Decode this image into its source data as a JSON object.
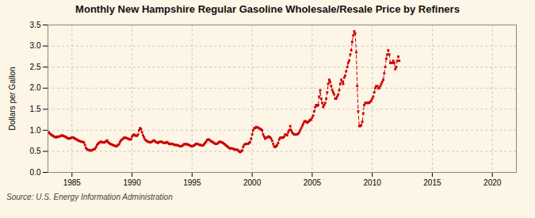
{
  "chart_data": {
    "type": "line",
    "title": "Monthly New Hampshire Regular Gasoline Wholesale/Resale Price by Refiners",
    "ylabel": "Dollars per Gallon",
    "annotations": [
      "Source: U.S. Energy Information Administration"
    ],
    "color": "#cc0000",
    "marker": "square",
    "line_style": "dashed",
    "grid": true,
    "xlim": [
      1983,
      2022
    ],
    "ylim": [
      0.0,
      3.5
    ],
    "xticks": [
      1985,
      1990,
      1995,
      2000,
      2005,
      2010,
      2015,
      2020
    ],
    "yticks": [
      {
        "value": 0.0,
        "label": "0.0"
      },
      0.5,
      {
        "value": 1.0,
        "label": "1.0"
      },
      1.5,
      {
        "value": 2.0,
        "label": "2.0"
      },
      2.5,
      {
        "value": 3.0,
        "label": "3.0"
      },
      3.5
    ],
    "x": [
      1983.08,
      1983.17,
      1983.25,
      1983.33,
      1983.42,
      1983.5,
      1983.58,
      1983.67,
      1983.75,
      1983.83,
      1983.92,
      1984.0,
      1984.08,
      1984.17,
      1984.25,
      1984.33,
      1984.42,
      1984.5,
      1984.58,
      1984.67,
      1984.75,
      1984.83,
      1984.92,
      1985.0,
      1985.08,
      1985.17,
      1985.25,
      1985.33,
      1985.42,
      1985.5,
      1985.58,
      1985.67,
      1985.75,
      1985.83,
      1985.92,
      1986.0,
      1986.08,
      1986.17,
      1986.25,
      1986.33,
      1986.42,
      1986.5,
      1986.58,
      1986.67,
      1986.75,
      1986.83,
      1986.92,
      1987.0,
      1987.08,
      1987.17,
      1987.25,
      1987.33,
      1987.42,
      1987.5,
      1987.58,
      1987.67,
      1987.75,
      1987.83,
      1987.92,
      1988.0,
      1988.08,
      1988.17,
      1988.25,
      1988.33,
      1988.42,
      1988.5,
      1988.58,
      1988.67,
      1988.75,
      1988.83,
      1988.92,
      1989.0,
      1989.08,
      1989.17,
      1989.25,
      1989.33,
      1989.42,
      1989.5,
      1989.58,
      1989.67,
      1989.75,
      1989.83,
      1989.92,
      1990.0,
      1990.08,
      1990.17,
      1990.25,
      1990.33,
      1990.42,
      1990.5,
      1990.58,
      1990.67,
      1990.75,
      1990.83,
      1990.92,
      1991.0,
      1991.08,
      1991.17,
      1991.25,
      1991.33,
      1991.42,
      1991.5,
      1991.58,
      1991.67,
      1991.75,
      1991.83,
      1991.92,
      1992.0,
      1992.08,
      1992.17,
      1992.25,
      1992.33,
      1992.42,
      1992.5,
      1992.58,
      1992.67,
      1992.75,
      1992.83,
      1992.92,
      1993.0,
      1993.08,
      1993.17,
      1993.25,
      1993.33,
      1993.42,
      1993.5,
      1993.58,
      1993.67,
      1993.75,
      1993.83,
      1993.92,
      1994.0,
      1994.08,
      1994.17,
      1994.25,
      1994.33,
      1994.42,
      1994.5,
      1994.58,
      1994.67,
      1994.75,
      1994.83,
      1994.92,
      1995.0,
      1995.08,
      1995.17,
      1995.25,
      1995.33,
      1995.42,
      1995.5,
      1995.58,
      1995.67,
      1995.75,
      1995.83,
      1995.92,
      1996.0,
      1996.08,
      1996.17,
      1996.25,
      1996.33,
      1996.42,
      1996.5,
      1996.58,
      1996.67,
      1996.75,
      1996.83,
      1996.92,
      1997.0,
      1997.08,
      1997.17,
      1997.25,
      1997.33,
      1997.42,
      1997.5,
      1997.58,
      1997.67,
      1997.75,
      1997.83,
      1997.92,
      1998.0,
      1998.08,
      1998.17,
      1998.25,
      1998.33,
      1998.42,
      1998.5,
      1998.58,
      1998.67,
      1998.75,
      1998.83,
      1998.92,
      1999.0,
      1999.08,
      1999.17,
      1999.25,
      1999.33,
      1999.42,
      1999.5,
      1999.58,
      1999.67,
      1999.75,
      1999.83,
      1999.92,
      2000.0,
      2000.08,
      2000.17,
      2000.25,
      2000.33,
      2000.42,
      2000.5,
      2000.58,
      2000.67,
      2000.75,
      2000.83,
      2000.92,
      2001.0,
      2001.08,
      2001.17,
      2001.25,
      2001.33,
      2001.42,
      2001.5,
      2001.58,
      2001.67,
      2001.75,
      2001.83,
      2001.92,
      2002.0,
      2002.08,
      2002.17,
      2002.25,
      2002.33,
      2002.42,
      2002.5,
      2002.58,
      2002.67,
      2002.75,
      2002.83,
      2002.92,
      2003.0,
      2003.08,
      2003.17,
      2003.25,
      2003.33,
      2003.42,
      2003.5,
      2003.58,
      2003.67,
      2003.75,
      2003.83,
      2003.92,
      2004.0,
      2004.08,
      2004.17,
      2004.25,
      2004.33,
      2004.42,
      2004.5,
      2004.58,
      2004.67,
      2004.75,
      2004.83,
      2004.92,
      2005.0,
      2005.08,
      2005.17,
      2005.25,
      2005.33,
      2005.42,
      2005.5,
      2005.58,
      2005.67,
      2005.75,
      2005.83,
      2005.92,
      2006.0,
      2006.08,
      2006.17,
      2006.25,
      2006.33,
      2006.42,
      2006.5,
      2006.58,
      2006.67,
      2006.75,
      2006.83,
      2006.92,
      2007.0,
      2007.08,
      2007.17,
      2007.25,
      2007.33,
      2007.42,
      2007.5,
      2007.58,
      2007.67,
      2007.75,
      2007.83,
      2007.92,
      2008.0,
      2008.08,
      2008.17,
      2008.25,
      2008.33,
      2008.42,
      2008.5,
      2008.58,
      2008.67,
      2008.75,
      2008.83,
      2008.92,
      2009.0,
      2009.08,
      2009.17,
      2009.25,
      2009.33,
      2009.42,
      2009.5,
      2009.58,
      2009.67,
      2009.75,
      2009.83,
      2009.92,
      2010.0,
      2010.08,
      2010.17,
      2010.25,
      2010.33,
      2010.42,
      2010.5,
      2010.58,
      2010.67,
      2010.75,
      2010.83,
      2010.92,
      2011.0,
      2011.08,
      2011.17,
      2011.25,
      2011.33,
      2011.42,
      2011.5,
      2011.58,
      2011.67,
      2011.75,
      2011.83,
      2011.92,
      2012.0,
      2012.08,
      2012.17,
      2012.25
    ],
    "values": [
      0.95,
      0.92,
      0.9,
      0.88,
      0.87,
      0.85,
      0.84,
      0.83,
      0.85,
      0.84,
      0.85,
      0.86,
      0.87,
      0.88,
      0.87,
      0.86,
      0.85,
      0.84,
      0.82,
      0.81,
      0.8,
      0.81,
      0.82,
      0.83,
      0.83,
      0.82,
      0.8,
      0.79,
      0.78,
      0.76,
      0.75,
      0.74,
      0.73,
      0.73,
      0.72,
      0.71,
      0.65,
      0.58,
      0.55,
      0.54,
      0.53,
      0.52,
      0.52,
      0.53,
      0.54,
      0.55,
      0.56,
      0.6,
      0.65,
      0.68,
      0.7,
      0.72,
      0.73,
      0.72,
      0.71,
      0.71,
      0.72,
      0.74,
      0.76,
      0.72,
      0.7,
      0.68,
      0.67,
      0.66,
      0.65,
      0.64,
      0.63,
      0.62,
      0.63,
      0.65,
      0.67,
      0.72,
      0.76,
      0.78,
      0.8,
      0.82,
      0.83,
      0.82,
      0.81,
      0.8,
      0.79,
      0.78,
      0.79,
      0.85,
      0.88,
      0.9,
      0.88,
      0.87,
      0.87,
      0.9,
      1.0,
      1.05,
      1.03,
      0.95,
      0.88,
      0.83,
      0.78,
      0.76,
      0.74,
      0.73,
      0.72,
      0.71,
      0.72,
      0.73,
      0.75,
      0.76,
      0.74,
      0.72,
      0.71,
      0.7,
      0.72,
      0.73,
      0.73,
      0.72,
      0.71,
      0.7,
      0.7,
      0.71,
      0.72,
      0.7,
      0.68,
      0.67,
      0.68,
      0.68,
      0.67,
      0.66,
      0.65,
      0.65,
      0.65,
      0.64,
      0.63,
      0.62,
      0.62,
      0.63,
      0.65,
      0.67,
      0.67,
      0.67,
      0.67,
      0.66,
      0.65,
      0.64,
      0.62,
      0.62,
      0.63,
      0.64,
      0.66,
      0.68,
      0.68,
      0.67,
      0.66,
      0.65,
      0.65,
      0.64,
      0.64,
      0.67,
      0.7,
      0.73,
      0.77,
      0.78,
      0.78,
      0.76,
      0.74,
      0.73,
      0.71,
      0.7,
      0.68,
      0.68,
      0.68,
      0.7,
      0.72,
      0.73,
      0.72,
      0.71,
      0.7,
      0.68,
      0.66,
      0.64,
      0.62,
      0.6,
      0.58,
      0.57,
      0.57,
      0.57,
      0.56,
      0.55,
      0.54,
      0.54,
      0.54,
      0.52,
      0.5,
      0.48,
      0.5,
      0.52,
      0.6,
      0.65,
      0.67,
      0.68,
      0.68,
      0.68,
      0.7,
      0.72,
      0.8,
      0.9,
      1.0,
      1.05,
      1.05,
      1.08,
      1.07,
      1.06,
      1.05,
      1.03,
      1.02,
      1.0,
      0.9,
      0.85,
      0.8,
      0.82,
      0.83,
      0.85,
      0.85,
      0.83,
      0.8,
      0.75,
      0.68,
      0.62,
      0.6,
      0.62,
      0.65,
      0.7,
      0.78,
      0.82,
      0.83,
      0.82,
      0.83,
      0.85,
      0.9,
      0.9,
      0.88,
      0.95,
      1.0,
      1.1,
      1.0,
      0.95,
      0.92,
      0.9,
      0.9,
      0.9,
      0.9,
      0.92,
      0.95,
      1.0,
      1.05,
      1.1,
      1.15,
      1.2,
      1.22,
      1.2,
      1.18,
      1.2,
      1.22,
      1.25,
      1.25,
      1.3,
      1.35,
      1.45,
      1.55,
      1.6,
      1.58,
      1.6,
      1.8,
      1.95,
      1.75,
      1.65,
      1.55,
      1.6,
      1.65,
      1.75,
      1.9,
      2.1,
      2.2,
      2.15,
      2.05,
      1.95,
      1.9,
      1.85,
      1.75,
      1.75,
      1.8,
      1.85,
      1.95,
      2.1,
      2.2,
      2.15,
      2.1,
      2.25,
      2.3,
      2.4,
      2.5,
      2.6,
      2.65,
      2.8,
      2.9,
      3.1,
      3.25,
      3.35,
      3.3,
      2.85,
      2.05,
      1.45,
      1.1,
      1.1,
      1.12,
      1.2,
      1.4,
      1.6,
      1.65,
      1.65,
      1.65,
      1.65,
      1.65,
      1.68,
      1.7,
      1.75,
      1.8,
      1.9,
      2.0,
      2.05,
      2.05,
      2.0,
      2.0,
      2.05,
      2.1,
      2.15,
      2.2,
      2.35,
      2.5,
      2.7,
      2.8,
      2.9,
      2.8,
      2.6,
      2.6,
      2.6,
      2.65,
      2.6,
      2.45,
      2.5,
      2.65,
      2.75,
      2.65
    ]
  }
}
